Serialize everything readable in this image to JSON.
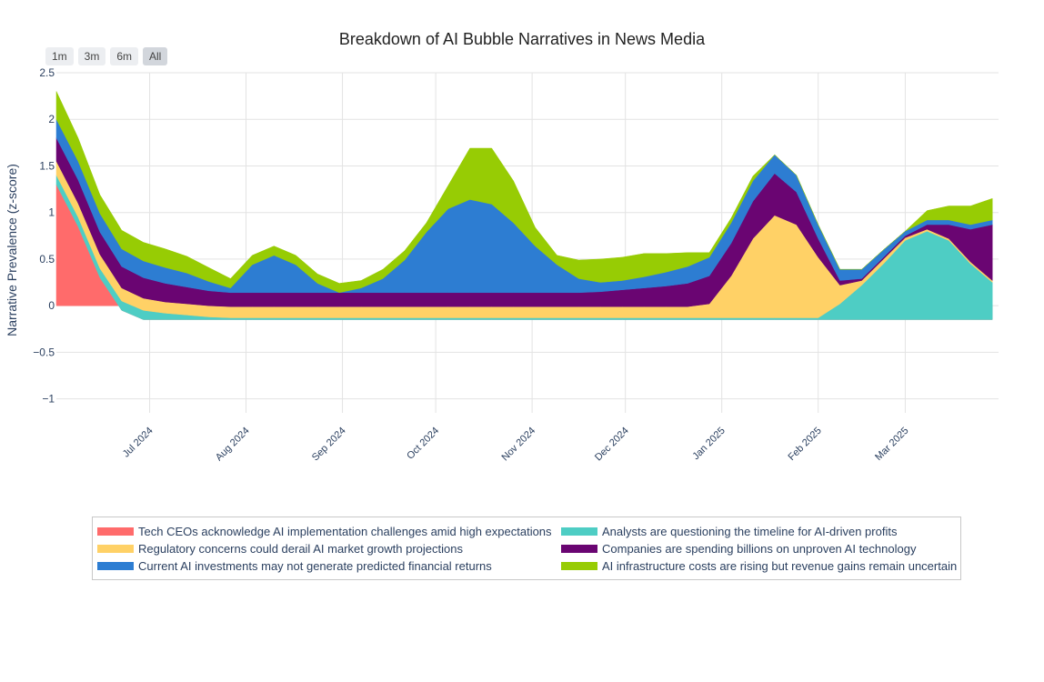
{
  "controls": {
    "range_buttons": [
      "1m",
      "3m",
      "6m",
      "All"
    ],
    "active_range": "All"
  },
  "chart_data": {
    "type": "area",
    "title": "Breakdown of AI Bubble Narratives in News Media",
    "xlabel": "",
    "ylabel": "Narrative Prevalence (z-score)",
    "ylim": [
      -1.15,
      2.5
    ],
    "xlim": [
      "2024-06-01",
      "2025-03-31"
    ],
    "y_ticks": [
      -1,
      -0.5,
      0,
      0.5,
      1,
      1.5,
      2,
      2.5
    ],
    "y_tick_labels": [
      "−1",
      "−0.5",
      "0",
      "0.5",
      "1",
      "1.5",
      "2",
      "2.5"
    ],
    "x_ticks": [
      "2024-07-01",
      "2024-08-01",
      "2024-09-01",
      "2024-10-01",
      "2024-11-01",
      "2024-12-01",
      "2025-01-01",
      "2025-02-01",
      "2025-03-01"
    ],
    "x_tick_labels": [
      "Jul 2024",
      "Aug 2024",
      "Sep 2024",
      "Oct 2024",
      "Nov 2024",
      "Dec 2024",
      "Jan 2025",
      "Feb 2025",
      "Mar 2025"
    ],
    "grid": true,
    "legend_position": "bottom",
    "x": [
      "2024-06-01",
      "2024-06-08",
      "2024-06-15",
      "2024-06-22",
      "2024-06-29",
      "2024-07-06",
      "2024-07-13",
      "2024-07-20",
      "2024-07-27",
      "2024-08-03",
      "2024-08-10",
      "2024-08-17",
      "2024-08-24",
      "2024-08-31",
      "2024-09-07",
      "2024-09-14",
      "2024-09-21",
      "2024-09-28",
      "2024-10-05",
      "2024-10-12",
      "2024-10-19",
      "2024-10-26",
      "2024-11-02",
      "2024-11-09",
      "2024-11-16",
      "2024-11-23",
      "2024-11-30",
      "2024-12-07",
      "2024-12-14",
      "2024-12-21",
      "2024-12-28",
      "2025-01-04",
      "2025-01-11",
      "2025-01-18",
      "2025-01-25",
      "2025-02-01",
      "2025-02-08",
      "2025-02-15",
      "2025-02-22",
      "2025-03-01",
      "2025-03-08",
      "2025-03-15",
      "2025-03-22",
      "2025-03-29"
    ],
    "series": [
      {
        "name": "Tech CEOs acknowledge AI implementation challenges amid high expectations",
        "color": "#ff6b6b",
        "values": [
          1.3,
          0.85,
          0.3,
          -0.05,
          -0.15,
          -0.15,
          -0.15,
          -0.15,
          -0.15,
          -0.15,
          -0.15,
          -0.15,
          -0.15,
          -0.15,
          -0.15,
          -0.15,
          -0.15,
          -0.15,
          -0.15,
          -0.15,
          -0.15,
          -0.15,
          -0.15,
          -0.15,
          -0.15,
          -0.15,
          -0.15,
          -0.15,
          -0.15,
          -0.15,
          -0.15,
          -0.15,
          -0.15,
          -0.15,
          -0.15,
          -0.15,
          -0.15,
          -0.15,
          -0.15,
          -0.15,
          -0.15,
          -0.15,
          -0.15,
          -0.15
        ]
      },
      {
        "name": "Analysts are questioning the timeline for AI-driven profits",
        "color": "#4ecdc4",
        "values": [
          0.1,
          0.1,
          0.1,
          0.1,
          0.1,
          0.07,
          0.05,
          0.03,
          0.02,
          0.02,
          0.02,
          0.02,
          0.02,
          0.02,
          0.02,
          0.02,
          0.02,
          0.02,
          0.02,
          0.02,
          0.02,
          0.02,
          0.02,
          0.02,
          0.02,
          0.02,
          0.02,
          0.02,
          0.02,
          0.02,
          0.02,
          0.02,
          0.02,
          0.02,
          0.02,
          0.02,
          0.17,
          0.37,
          0.6,
          0.85,
          0.95,
          0.85,
          0.6,
          0.4
        ]
      },
      {
        "name": "Regulatory concerns could derail AI market growth projections",
        "color": "#ffd166",
        "values": [
          0.15,
          0.15,
          0.15,
          0.14,
          0.13,
          0.12,
          0.12,
          0.12,
          0.12,
          0.12,
          0.12,
          0.12,
          0.12,
          0.12,
          0.12,
          0.12,
          0.12,
          0.12,
          0.12,
          0.12,
          0.12,
          0.12,
          0.12,
          0.12,
          0.12,
          0.12,
          0.12,
          0.12,
          0.12,
          0.12,
          0.15,
          0.45,
          0.85,
          1.1,
          1.0,
          0.65,
          0.2,
          0.05,
          0.05,
          0.03,
          0.02,
          0.02,
          0.02,
          0.02
        ]
      },
      {
        "name": "Companies are spending billions on unproven AI technology",
        "color": "#6a0572",
        "values": [
          0.25,
          0.25,
          0.24,
          0.23,
          0.22,
          0.2,
          0.18,
          0.16,
          0.15,
          0.15,
          0.15,
          0.15,
          0.15,
          0.15,
          0.15,
          0.15,
          0.15,
          0.15,
          0.15,
          0.15,
          0.15,
          0.15,
          0.15,
          0.15,
          0.15,
          0.16,
          0.18,
          0.2,
          0.22,
          0.25,
          0.3,
          0.35,
          0.4,
          0.45,
          0.35,
          0.2,
          0.05,
          0.02,
          0.02,
          0.02,
          0.05,
          0.15,
          0.35,
          0.6
        ]
      },
      {
        "name": "Current AI investments may not generate predicted financial returns",
        "color": "#2d7dd2",
        "values": [
          0.2,
          0.2,
          0.2,
          0.19,
          0.18,
          0.17,
          0.15,
          0.1,
          0.05,
          0.3,
          0.4,
          0.3,
          0.1,
          0.0,
          0.05,
          0.15,
          0.35,
          0.65,
          0.9,
          1.0,
          0.95,
          0.75,
          0.5,
          0.3,
          0.15,
          0.1,
          0.1,
          0.12,
          0.15,
          0.18,
          0.2,
          0.22,
          0.22,
          0.2,
          0.18,
          0.15,
          0.12,
          0.1,
          0.08,
          0.05,
          0.05,
          0.05,
          0.05,
          0.05
        ]
      },
      {
        "name": "AI infrastructure costs are rising but revenue gains remain uncertain",
        "color": "#97cc04",
        "values": [
          0.3,
          0.25,
          0.2,
          0.2,
          0.2,
          0.2,
          0.18,
          0.15,
          0.1,
          0.1,
          0.1,
          0.1,
          0.1,
          0.1,
          0.08,
          0.1,
          0.1,
          0.1,
          0.25,
          0.55,
          0.6,
          0.45,
          0.2,
          0.1,
          0.2,
          0.25,
          0.25,
          0.25,
          0.2,
          0.15,
          0.05,
          0.05,
          0.05,
          0.0,
          0.0,
          0.0,
          0.0,
          0.0,
          0.0,
          0.0,
          0.1,
          0.15,
          0.2,
          0.23
        ]
      }
    ],
    "legend_columns": [
      [
        "Tech CEOs acknowledge AI implementation challenges amid high expectations",
        "Regulatory concerns could derail AI market growth projections",
        "Current AI investments may not generate predicted financial returns"
      ],
      [
        "Analysts are questioning the timeline for AI-driven profits",
        "Companies are spending billions on unproven AI technology",
        "AI infrastructure costs are rising but revenue gains remain uncertain"
      ]
    ]
  }
}
